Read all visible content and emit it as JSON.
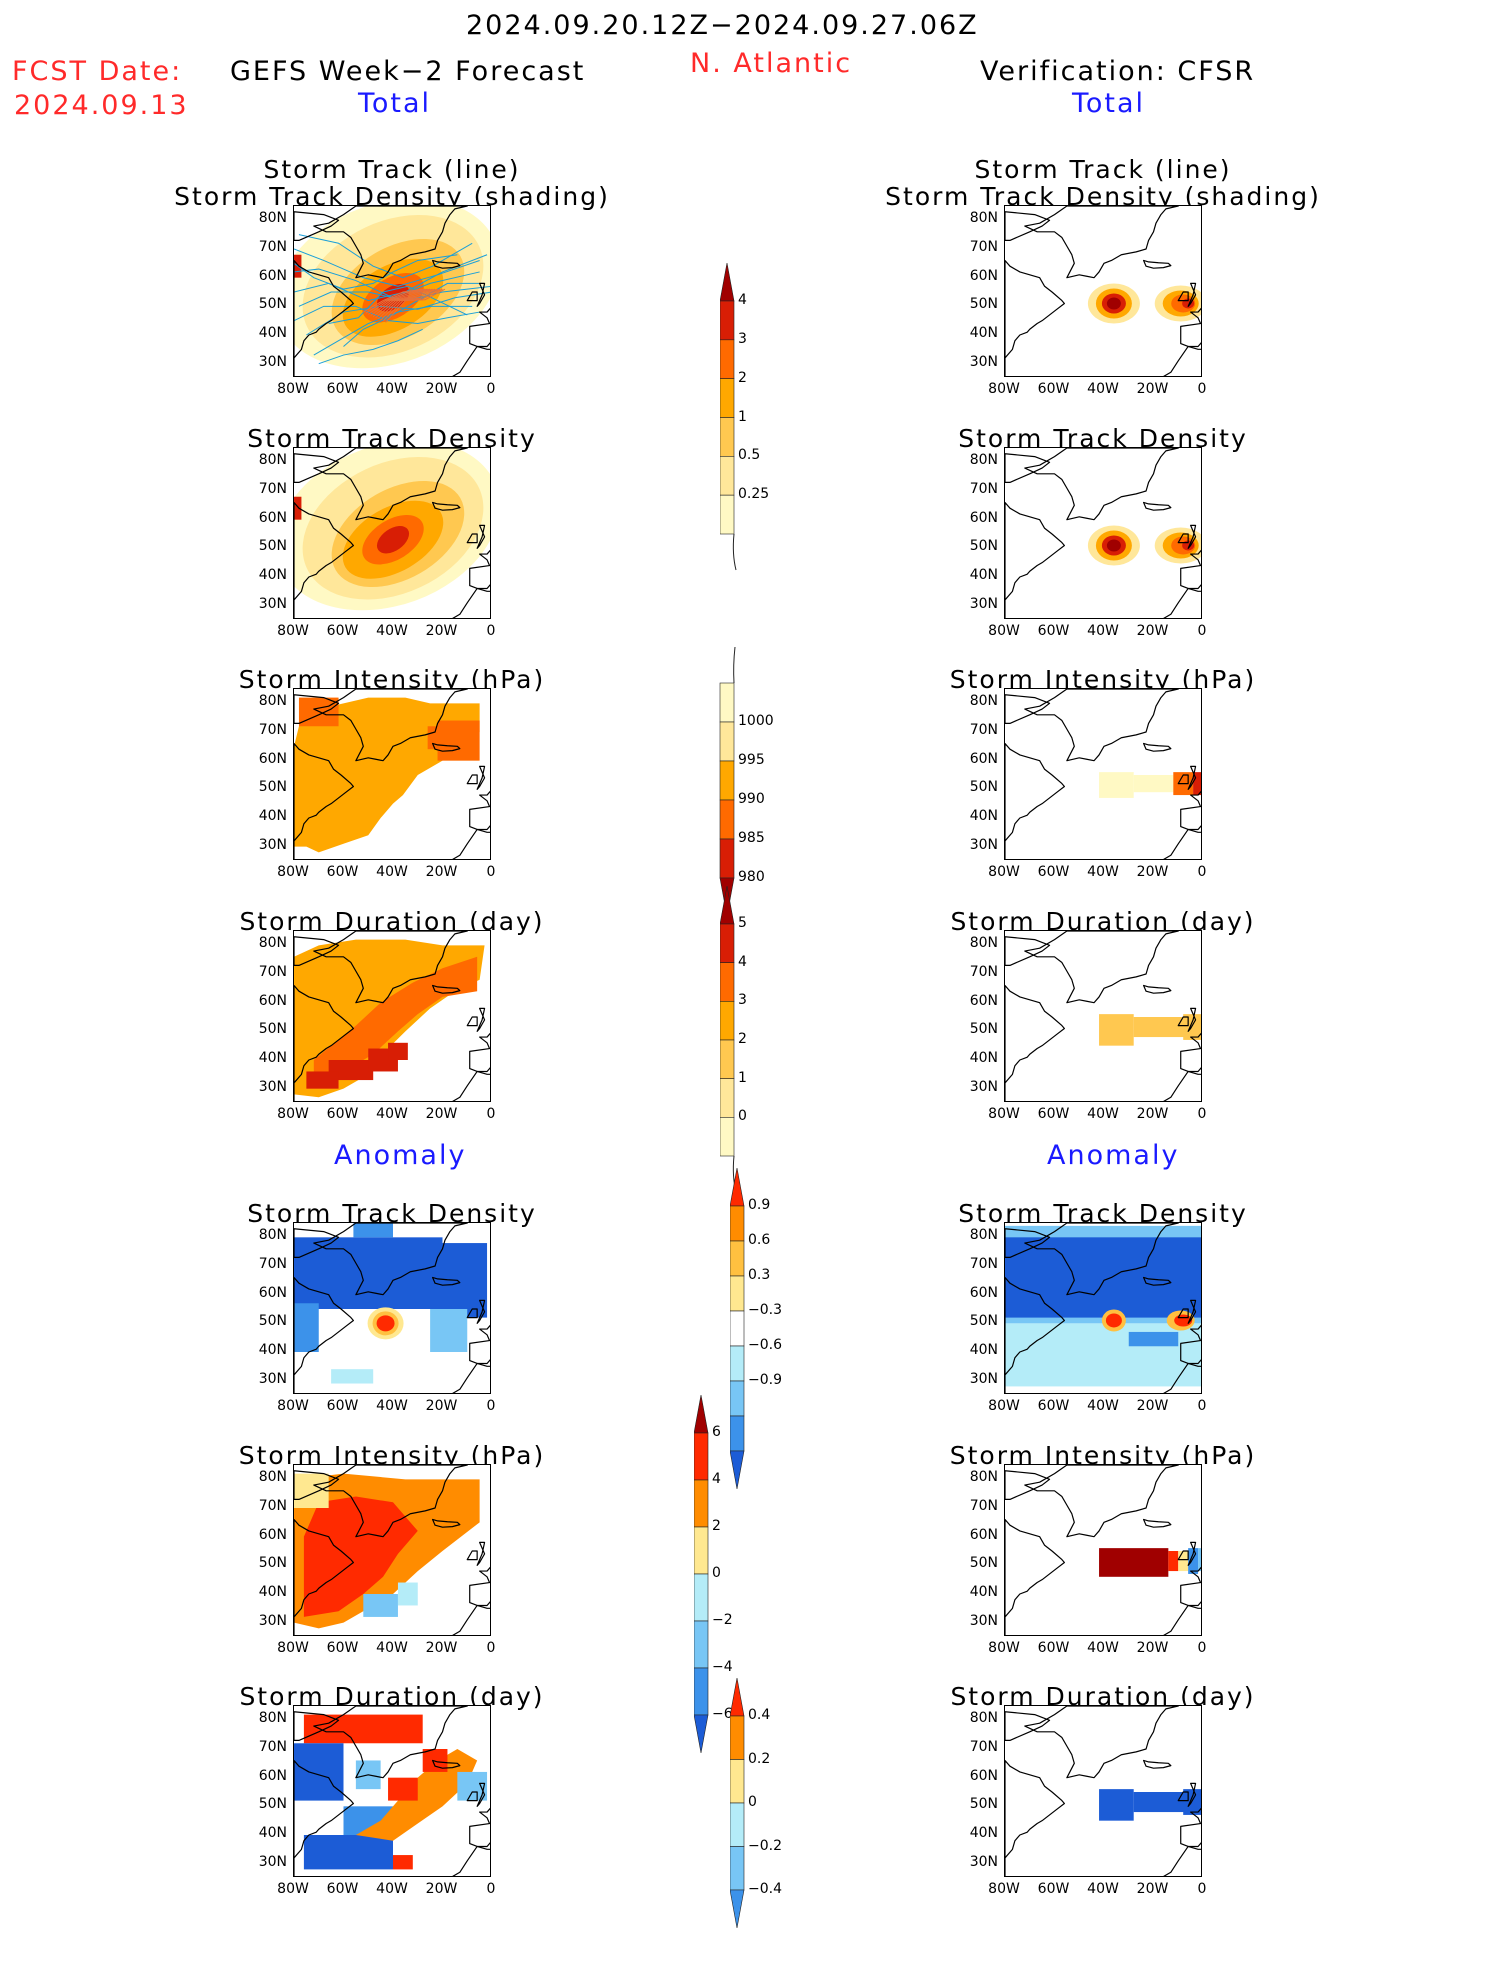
{
  "header": {
    "period": "2024.09.20.12Z−2024.09.27.06Z",
    "region": "N. Atlantic",
    "fcst_label": "FCST Date:",
    "fcst_date": "2024.09.13",
    "left_title": "GEFS Week−2 Forecast",
    "right_title": "Verification: CFSR",
    "total_label": "Total",
    "anomaly_label": "Anomaly"
  },
  "axes": {
    "lat_ticks": [
      "80N",
      "70N",
      "60N",
      "50N",
      "40N",
      "30N"
    ],
    "lon_ticks": [
      "80W",
      "60W",
      "40W",
      "20W",
      "0"
    ]
  },
  "panels": {
    "track_title_1": "Storm Track (line)",
    "track_title_2": "Storm Track Density (shading)",
    "density_title": "Storm Track Density",
    "intensity_title": "Storm Intensity (hPa)",
    "duration_title": "Storm Duration (day)"
  },
  "colorbars": {
    "density": {
      "labels": [
        "4",
        "3",
        "2",
        "1",
        "0.5",
        "0.25"
      ],
      "colors": [
        "#a00000",
        "#d81e05",
        "#ff6a00",
        "#ffa800",
        "#ffc850",
        "#ffe79a",
        "#fff9c4"
      ]
    },
    "intensity": {
      "labels": [
        "1000",
        "995",
        "990",
        "985",
        "980"
      ],
      "colors": [
        "#fff9c4",
        "#ffe79a",
        "#ffa800",
        "#ff6a00",
        "#d81e05",
        "#a00000"
      ]
    },
    "duration": {
      "labels": [
        "5",
        "4",
        "3",
        "2",
        "1",
        "0"
      ],
      "colors": [
        "#a00000",
        "#d81e05",
        "#ff6a00",
        "#ffa800",
        "#ffc850",
        "#ffe79a",
        "#fff9c4"
      ]
    },
    "anom_density": {
      "labels": [
        "0.9",
        "0.6",
        "0.3",
        "−0.3",
        "−0.6",
        "−0.9"
      ],
      "colors": [
        "#ff2a00",
        "#ff8c00",
        "#ffc040",
        "#ffe890",
        "#ffffff",
        "#b4ecf8",
        "#78c6f5",
        "#3c92ea",
        "#1c5cd6"
      ]
    },
    "anom_intensity": {
      "labels": [
        "6",
        "4",
        "2",
        "0",
        "−2",
        "−4",
        "−6"
      ],
      "colors": [
        "#a00000",
        "#ff2a00",
        "#ff8c00",
        "#ffe890",
        "#b4ecf8",
        "#78c6f5",
        "#3c92ea",
        "#1c5cd6"
      ]
    },
    "anom_duration": {
      "labels": [
        "0.4",
        "0.2",
        "0",
        "−0.2",
        "−0.4"
      ],
      "colors": [
        "#ff2a00",
        "#ff8c00",
        "#ffe890",
        "#b4ecf8",
        "#78c6f5",
        "#3c92ea"
      ]
    }
  },
  "chart_data": [
    {
      "type": "heatmap",
      "title": "Storm Track (line) Storm Track Density (shading)",
      "side": "GEFS Week-2 Forecast Total",
      "lon_range": [
        -80,
        0
      ],
      "lat_range": [
        25,
        85
      ],
      "peak": {
        "lon": -40,
        "lat": 52,
        "value": 3
      }
    },
    {
      "type": "heatmap",
      "title": "Storm Track Density",
      "side": "GEFS Week-2 Forecast Total",
      "lon_range": [
        -80,
        0
      ],
      "lat_range": [
        25,
        85
      ],
      "peak": {
        "lon": -40,
        "lat": 52,
        "value": 3
      }
    },
    {
      "type": "heatmap",
      "title": "Storm Intensity (hPa)",
      "side": "GEFS Week-2 Forecast Total",
      "lon_range": [
        -80,
        0
      ],
      "lat_range": [
        25,
        85
      ],
      "dominant_value": 992
    },
    {
      "type": "heatmap",
      "title": "Storm Duration (day)",
      "side": "GEFS Week-2 Forecast Total",
      "lon_range": [
        -80,
        0
      ],
      "lat_range": [
        25,
        85
      ],
      "max_value": 4
    },
    {
      "type": "heatmap",
      "title": "Storm Track (line) Storm Track Density (shading)",
      "side": "Verification: CFSR Total",
      "lon_range": [
        -80,
        0
      ],
      "lat_range": [
        25,
        85
      ],
      "peaks": [
        {
          "lon": -36,
          "lat": 51,
          "value": 4
        },
        {
          "lon": -10,
          "lat": 51,
          "value": 4
        }
      ]
    },
    {
      "type": "heatmap",
      "title": "Storm Track Density",
      "side": "Verification: CFSR Total",
      "lon_range": [
        -80,
        0
      ],
      "lat_range": [
        25,
        85
      ],
      "peaks": [
        {
          "lon": -36,
          "lat": 51,
          "value": 4
        },
        {
          "lon": -10,
          "lat": 51,
          "value": 4
        }
      ]
    },
    {
      "type": "heatmap",
      "title": "Storm Intensity (hPa)",
      "side": "Verification: CFSR Total",
      "lon_range": [
        -80,
        0
      ],
      "lat_range": [
        25,
        85
      ],
      "min_value": 985
    },
    {
      "type": "heatmap",
      "title": "Storm Duration (day)",
      "side": "Verification: CFSR Total",
      "lon_range": [
        -80,
        0
      ],
      "lat_range": [
        25,
        85
      ],
      "dominant_value": 1.5
    },
    {
      "type": "heatmap",
      "title": "Storm Track Density",
      "side": "GEFS Week-2 Forecast Anomaly",
      "lon_range": [
        -80,
        0
      ],
      "lat_range": [
        25,
        85
      ],
      "min_value": -0.9,
      "max_value": 0.9
    },
    {
      "type": "heatmap",
      "title": "Storm Intensity (hPa)",
      "side": "GEFS Week-2 Forecast Anomaly",
      "lon_range": [
        -80,
        0
      ],
      "lat_range": [
        25,
        85
      ],
      "max_value": 4
    },
    {
      "type": "heatmap",
      "title": "Storm Duration (day)",
      "side": "GEFS Week-2 Forecast Anomaly",
      "lon_range": [
        -80,
        0
      ],
      "lat_range": [
        25,
        85
      ],
      "min_value": -0.4,
      "max_value": 0.4
    },
    {
      "type": "heatmap",
      "title": "Storm Track Density",
      "side": "Verification: CFSR Anomaly",
      "lon_range": [
        -80,
        0
      ],
      "lat_range": [
        25,
        85
      ],
      "min_value": -0.9,
      "max_value": 0.9
    },
    {
      "type": "heatmap",
      "title": "Storm Intensity (hPa)",
      "side": "Verification: CFSR Anomaly",
      "lon_range": [
        -80,
        0
      ],
      "lat_range": [
        25,
        85
      ],
      "max_value": 6
    },
    {
      "type": "heatmap",
      "title": "Storm Duration (day)",
      "side": "Verification: CFSR Anomaly",
      "lon_range": [
        -80,
        0
      ],
      "lat_range": [
        25,
        85
      ],
      "dominant_value": -0.4
    }
  ]
}
